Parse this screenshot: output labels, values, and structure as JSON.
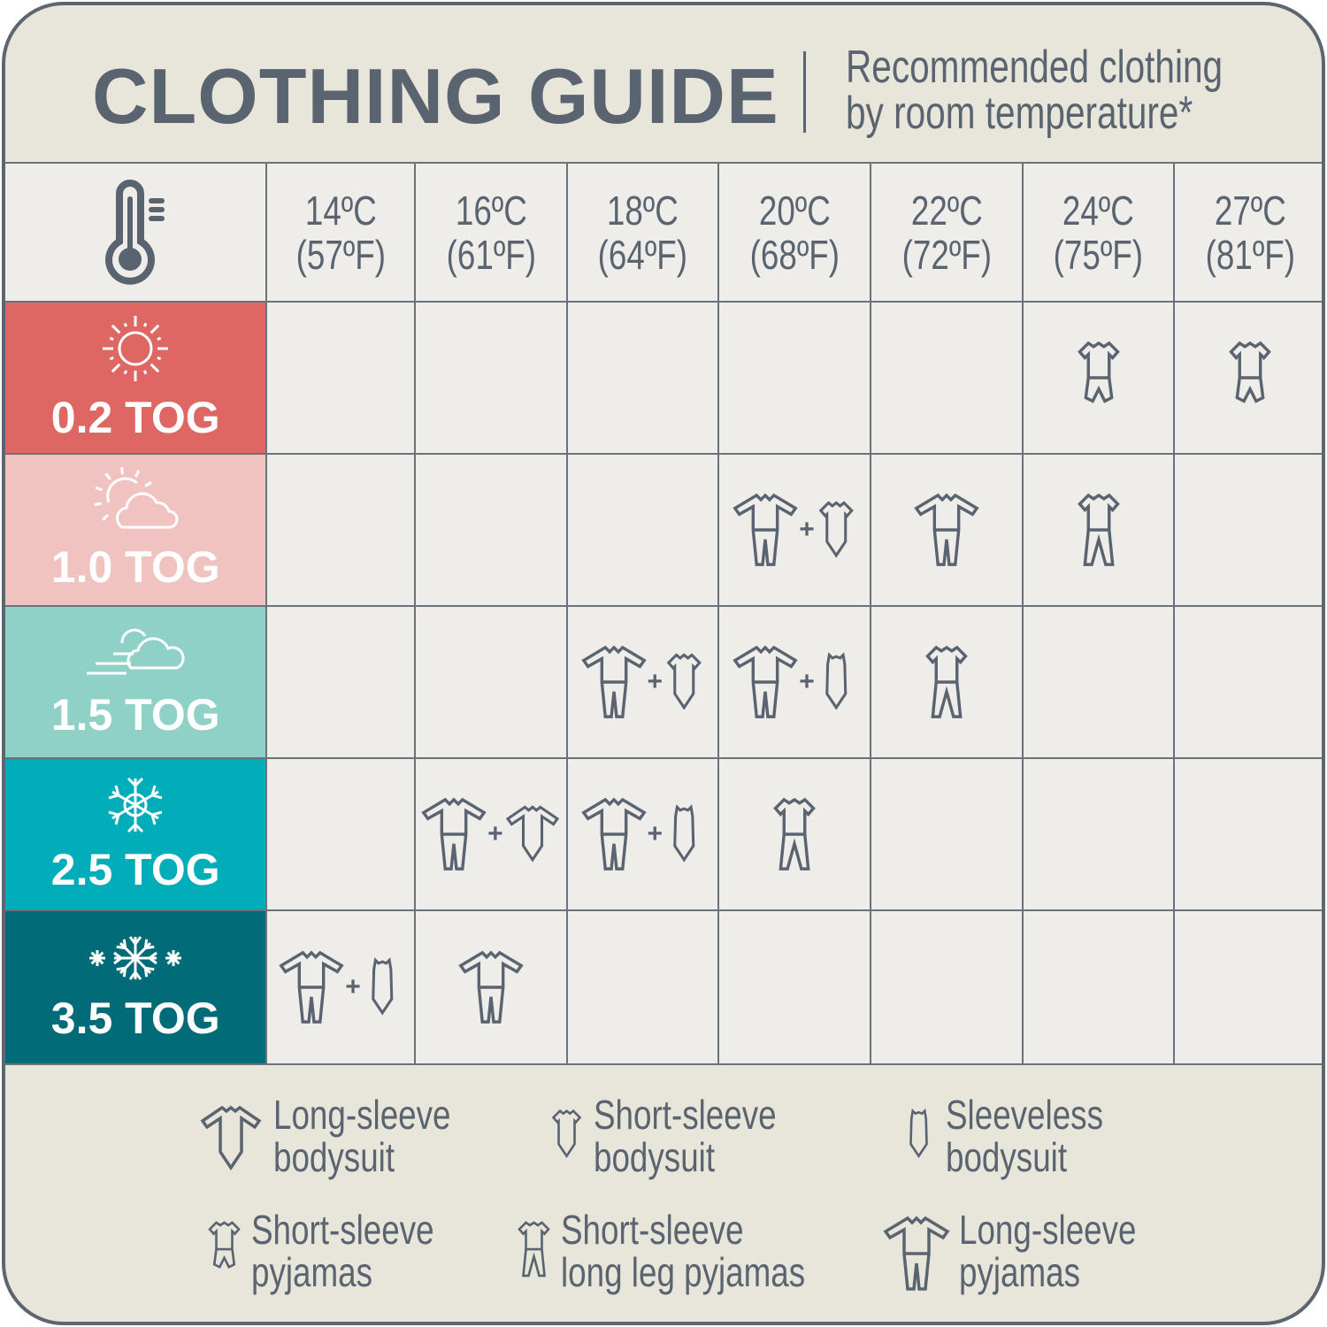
{
  "header": {
    "title": "CLOTHING GUIDE",
    "subtitle_line1": "Recommended clothing",
    "subtitle_line2": "by room temperature*"
  },
  "colors": {
    "text": "#5a6470",
    "frame": "#e8e6da",
    "cell": "#eeedea"
  },
  "temperatures": [
    {
      "c": "14ºC",
      "f": "(57ºF)"
    },
    {
      "c": "16ºC",
      "f": "(61ºF)"
    },
    {
      "c": "18ºC",
      "f": "(64ºF)"
    },
    {
      "c": "20ºC",
      "f": "(68ºF)"
    },
    {
      "c": "22ºC",
      "f": "(72ºF)"
    },
    {
      "c": "24ºC",
      "f": "(75ºF)"
    },
    {
      "c": "27ºC",
      "f": "(81ºF)"
    }
  ],
  "rows": [
    {
      "label": "0.2 TOG",
      "icon": "sun-icon",
      "color": "#de6763",
      "text_color": "#ffffff",
      "cells": [
        [],
        [],
        [],
        [],
        [],
        [
          "ss-pyjamas"
        ],
        [
          "ss-pyjamas"
        ]
      ]
    },
    {
      "label": "1.0 TOG",
      "icon": "sun-cloud-icon",
      "color": "#f0c3c0",
      "text_color": "#ffffff",
      "cells": [
        [],
        [],
        [],
        [
          "ls-pyjamas",
          "ss-bodysuit"
        ],
        [
          "ls-pyjamas"
        ],
        [
          "ss-longleg-pyjamas"
        ],
        []
      ]
    },
    {
      "label": "1.5 TOG",
      "icon": "wind-cloud-icon",
      "color": "#8fd1c7",
      "text_color": "#ffffff",
      "cells": [
        [],
        [],
        [
          "ls-pyjamas",
          "ss-bodysuit"
        ],
        [
          "ls-pyjamas",
          "sleeveless-bodysuit"
        ],
        [
          "ss-longleg-pyjamas"
        ],
        [],
        []
      ]
    },
    {
      "label": "2.5 TOG",
      "icon": "snowflake-icon",
      "color": "#00adb9",
      "text_color": "#ffffff",
      "cells": [
        [],
        [
          "ls-pyjamas",
          "ls-bodysuit"
        ],
        [
          "ls-pyjamas",
          "sleeveless-bodysuit"
        ],
        [
          "ss-longleg-pyjamas"
        ],
        [],
        [],
        []
      ]
    },
    {
      "label": "3.5 TOG",
      "icon": "snowflakes-icon",
      "color": "#026b78",
      "text_color": "#ffffff",
      "cells": [
        [
          "ls-pyjamas",
          "sleeveless-bodysuit"
        ],
        [
          "ls-pyjamas"
        ],
        [],
        [],
        [],
        [],
        []
      ]
    }
  ],
  "legend": [
    {
      "icon": "ls-bodysuit",
      "line1": "Long-sleeve",
      "line2": "bodysuit"
    },
    {
      "icon": "ss-bodysuit",
      "line1": "Short-sleeve",
      "line2": "bodysuit"
    },
    {
      "icon": "sleeveless-bodysuit",
      "line1": "Sleeveless",
      "line2": "bodysuit"
    },
    {
      "icon": "ss-pyjamas",
      "line1": "Short-sleeve",
      "line2": "pyjamas"
    },
    {
      "icon": "ss-longleg-pyjamas",
      "line1": "Short-sleeve",
      "line2": "long leg pyjamas"
    },
    {
      "icon": "ls-pyjamas",
      "line1": "Long-sleeve",
      "line2": "pyjamas"
    }
  ],
  "plus": "+"
}
